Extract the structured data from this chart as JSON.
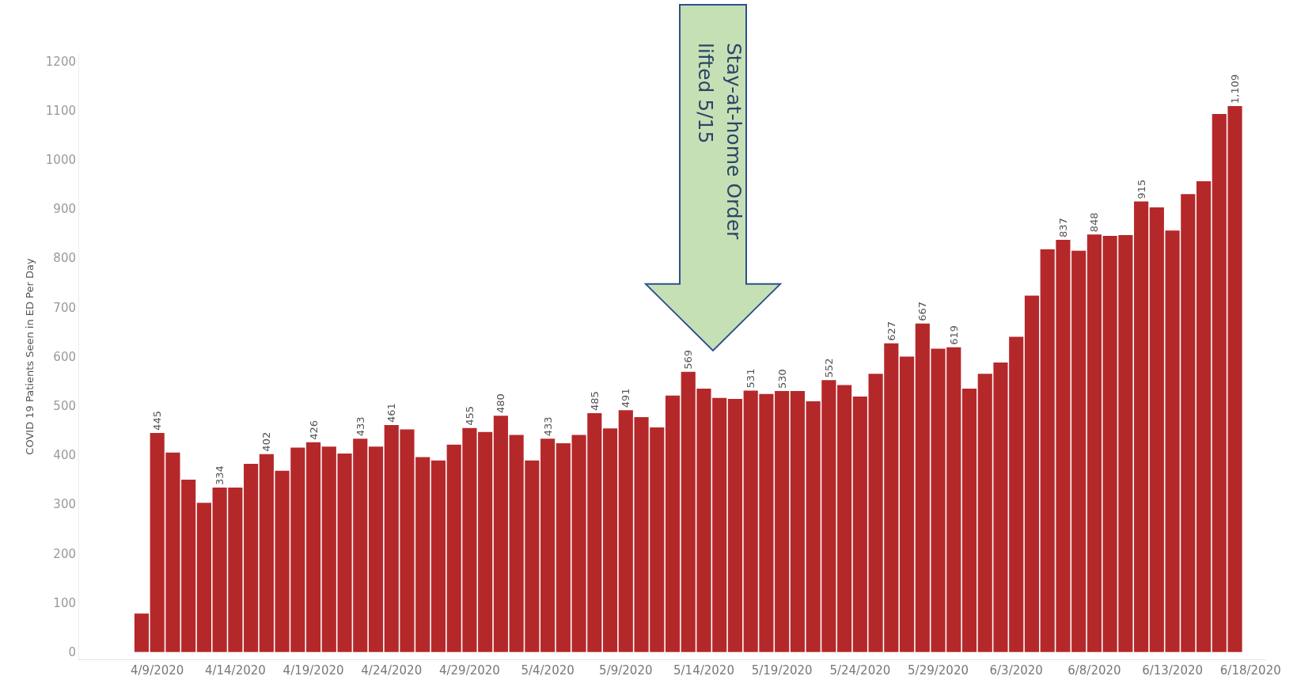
{
  "chart_data": {
    "type": "bar",
    "ylabel": "COVID 19 Patients Seen in ED Per Day",
    "x": [
      "2020-04-08",
      "2020-04-09",
      "2020-04-10",
      "2020-04-11",
      "2020-04-12",
      "2020-04-13",
      "2020-04-14",
      "2020-04-15",
      "2020-04-16",
      "2020-04-17",
      "2020-04-18",
      "2020-04-19",
      "2020-04-20",
      "2020-04-21",
      "2020-04-22",
      "2020-04-23",
      "2020-04-24",
      "2020-04-25",
      "2020-04-26",
      "2020-04-27",
      "2020-04-28",
      "2020-04-29",
      "2020-04-30",
      "2020-05-01",
      "2020-05-02",
      "2020-05-03",
      "2020-05-04",
      "2020-05-05",
      "2020-05-06",
      "2020-05-07",
      "2020-05-08",
      "2020-05-09",
      "2020-05-10",
      "2020-05-11",
      "2020-05-12",
      "2020-05-13",
      "2020-05-14",
      "2020-05-15",
      "2020-05-16",
      "2020-05-17",
      "2020-05-18",
      "2020-05-19",
      "2020-05-20",
      "2020-05-21",
      "2020-05-22",
      "2020-05-23",
      "2020-05-24",
      "2020-05-25",
      "2020-05-26",
      "2020-05-27",
      "2020-05-28",
      "2020-05-29",
      "2020-05-30",
      "2020-05-31",
      "2020-06-01",
      "2020-06-02",
      "2020-06-03",
      "2020-06-04",
      "2020-06-05",
      "2020-06-06",
      "2020-06-07",
      "2020-06-08",
      "2020-06-09",
      "2020-06-10",
      "2020-06-11",
      "2020-06-12",
      "2020-06-13",
      "2020-06-14",
      "2020-06-15",
      "2020-06-16",
      "2020-06-17"
    ],
    "values": [
      78,
      445,
      405,
      350,
      303,
      334,
      334,
      382,
      402,
      368,
      415,
      426,
      417,
      403,
      433,
      417,
      461,
      452,
      396,
      389,
      421,
      455,
      447,
      480,
      441,
      389,
      433,
      424,
      441,
      485,
      454,
      491,
      477,
      456,
      521,
      569,
      535,
      516,
      514,
      531,
      524,
      530,
      530,
      509,
      552,
      542,
      519,
      565,
      627,
      600,
      667,
      616,
      619,
      535,
      565,
      588,
      640,
      724,
      818,
      837,
      815,
      848,
      845,
      847,
      915,
      903,
      856,
      930,
      956,
      1093,
      1109
    ],
    "value_labels": [
      null,
      "445",
      null,
      null,
      null,
      "334",
      null,
      null,
      "402",
      null,
      null,
      "426",
      null,
      null,
      "433",
      null,
      "461",
      null,
      null,
      null,
      null,
      "455",
      null,
      "480",
      null,
      null,
      "433",
      null,
      null,
      "485",
      null,
      "491",
      null,
      null,
      null,
      "569",
      null,
      null,
      null,
      "531",
      null,
      "530",
      null,
      null,
      "552",
      null,
      null,
      null,
      "627",
      null,
      "667",
      null,
      "619",
      null,
      null,
      null,
      null,
      null,
      null,
      "837",
      null,
      "848",
      null,
      null,
      "915",
      null,
      null,
      null,
      null,
      null,
      "1,109"
    ],
    "color": "#b5282a",
    "xlim": [
      "2020-04-04",
      "2020-06-19"
    ],
    "xticks": [
      {
        "value": "2020-04-09",
        "label": "4/9/2020"
      },
      {
        "value": "2020-04-14",
        "label": "4/14/2020"
      },
      {
        "value": "2020-04-19",
        "label": "4/19/2020"
      },
      {
        "value": "2020-04-24",
        "label": "4/24/2020"
      },
      {
        "value": "2020-04-29",
        "label": "4/29/2020"
      },
      {
        "value": "2020-05-04",
        "label": "5/4/2020"
      },
      {
        "value": "2020-05-09",
        "label": "5/9/2020"
      },
      {
        "value": "2020-05-14",
        "label": "5/14/2020"
      },
      {
        "value": "2020-05-19",
        "label": "5/19/2020"
      },
      {
        "value": "2020-05-24",
        "label": "5/24/2020"
      },
      {
        "value": "2020-05-29",
        "label": "5/29/2020"
      },
      {
        "value": "2020-06-03",
        "label": "6/3/2020"
      },
      {
        "value": "2020-06-08",
        "label": "6/8/2020"
      },
      {
        "value": "2020-06-13",
        "label": "6/13/2020"
      },
      {
        "value": "2020-06-18",
        "label": "6/18/2020"
      }
    ],
    "ylim": [
      -15,
      1215
    ],
    "yticks": [
      0,
      100,
      200,
      300,
      400,
      500,
      600,
      700,
      800,
      900,
      1000,
      1100,
      1200
    ],
    "grid": false,
    "legend": false,
    "annotations": [
      "Stay-at-home Order\nlifted 5/15"
    ]
  }
}
